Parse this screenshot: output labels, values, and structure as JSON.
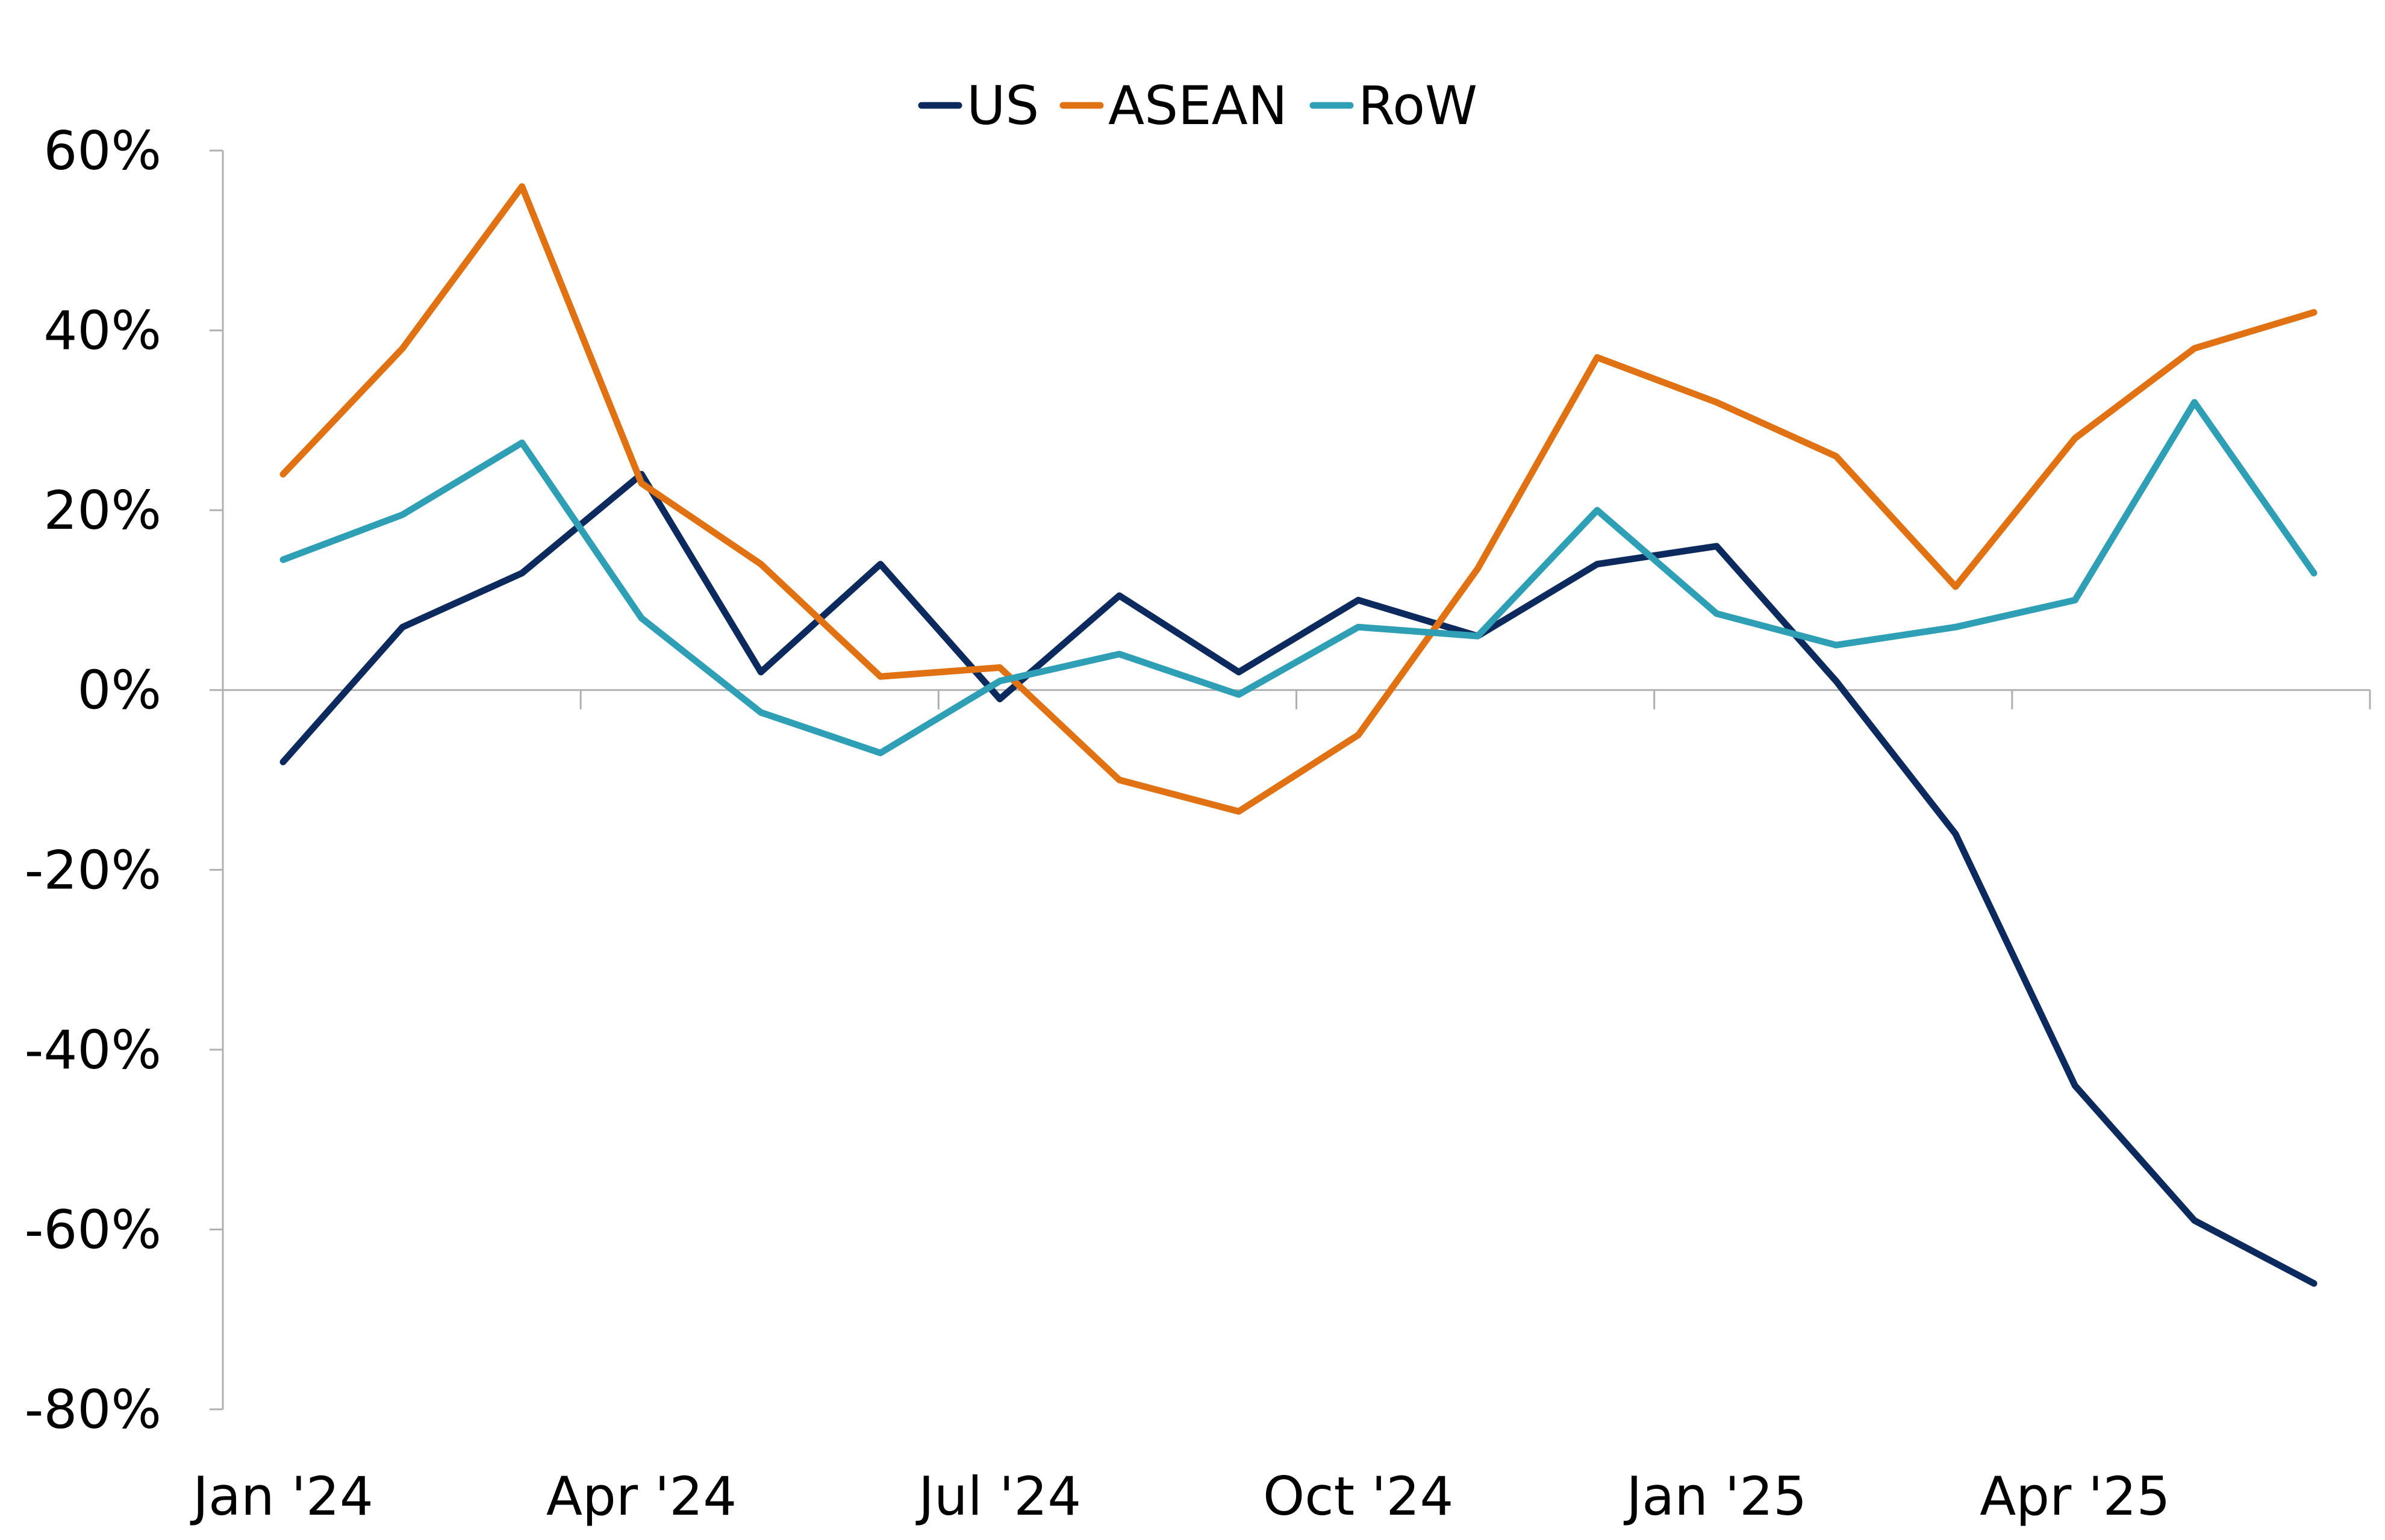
{
  "chart_data": {
    "type": "line",
    "title": "",
    "xlabel": "",
    "ylabel": "",
    "x": [
      "Jan '24",
      "Feb '24",
      "Mar '24",
      "Apr '24",
      "May '24",
      "Jun '24",
      "Jul '24",
      "Aug '24",
      "Sep '24",
      "Oct '24",
      "Nov '24",
      "Dec '24",
      "Jan '25",
      "Feb '25",
      "Mar '25",
      "Apr '25",
      "May '25",
      "Jun '25"
    ],
    "x_tick_labels": [
      "Jan '24",
      "Apr '24",
      "Jul '24",
      "Oct '24",
      "Jan '25",
      "Apr '25"
    ],
    "x_tick_index": [
      0,
      3,
      6,
      9,
      12,
      15
    ],
    "ylim": [
      -80,
      60
    ],
    "y_ticks": [
      60,
      40,
      20,
      0,
      -20,
      -40,
      -60,
      -80
    ],
    "y_tick_labels": [
      "60%",
      "40%",
      "20%",
      "0%",
      "-20%",
      "-40%",
      "-60%",
      "-80%"
    ],
    "grid": false,
    "legend_position": "top-center",
    "series": [
      {
        "name": "US",
        "color": "#0d2a5e",
        "values": [
          -8,
          7,
          13,
          24,
          2,
          14,
          -1,
          10.5,
          2,
          10,
          6,
          14,
          16,
          1,
          -16,
          -44,
          -59,
          -66
        ]
      },
      {
        "name": "ASEAN",
        "color": "#e07214",
        "values": [
          24,
          38,
          56,
          23,
          14,
          1.5,
          2.5,
          -10,
          -13.5,
          -5,
          13.5,
          37,
          32,
          26,
          11.5,
          28,
          38,
          42
        ]
      },
      {
        "name": "RoW",
        "color": "#2f9fb5",
        "values": [
          14.5,
          19.5,
          27.5,
          8,
          -2.5,
          -7,
          1,
          4,
          -0.5,
          7,
          6,
          20,
          8.5,
          5,
          7,
          10,
          32,
          13
        ]
      }
    ]
  }
}
